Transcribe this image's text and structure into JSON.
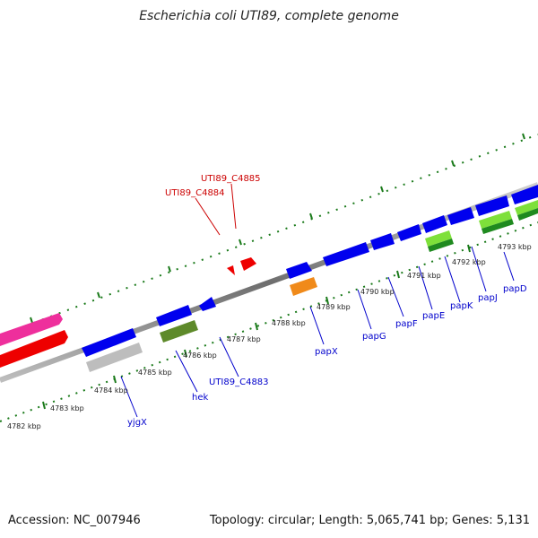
{
  "header": {
    "title": "Escherichia coli UTI89, complete genome"
  },
  "footer": {
    "accession": "Accession: NC_007946",
    "stats": "Topology: circular; Length: 5,065,741 bp; Genes: 5,131"
  },
  "scale_labels": [
    "4782 kbp",
    "4783 kbp",
    "4784 kbp",
    "4785 kbp",
    "4786 kbp",
    "4787 kbp",
    "4788 kbp",
    "4789 kbp",
    "4790 kbp",
    "4791 kbp",
    "4792 kbp",
    "4793 kbp"
  ],
  "gene_labels": {
    "forward": [
      "UTI89_C4885",
      "UTI89_C4884"
    ],
    "reverse": [
      "yjgX",
      "hek",
      "UTI89_C4883",
      "papX",
      "papG",
      "papF",
      "papE",
      "papK",
      "papJ",
      "papD"
    ]
  },
  "colors": {
    "forward_label": "#cc0000",
    "reverse_label": "#0000cc",
    "tick": "#1a7a1a",
    "cds": "#0000ee",
    "backbone": "#888888"
  }
}
